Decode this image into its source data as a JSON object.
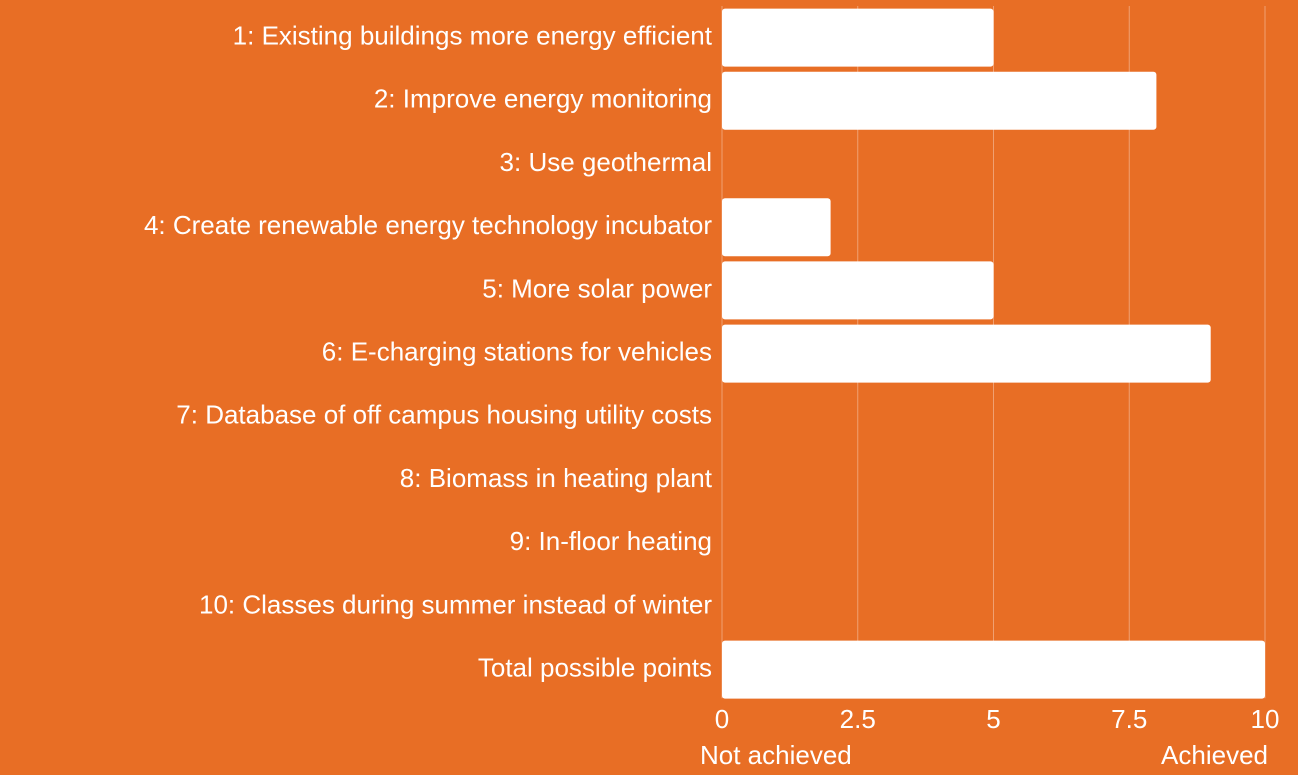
{
  "chart_data": {
    "type": "barh",
    "categories": [
      "1: Existing buildings more energy efficient",
      "2: Improve energy monitoring",
      "3: Use geothermal",
      "4: Create renewable energy technology incubator",
      "5: More solar power",
      "6: E-charging stations for vehicles",
      "7: Database of off campus housing utility costs",
      "8: Biomass in heating plant",
      "9: In-floor heating",
      "10: Classes during summer instead of winter",
      "Total possible points"
    ],
    "values": [
      5,
      8,
      0,
      2,
      5,
      9,
      0,
      0,
      0,
      0,
      10
    ],
    "color": "#ffffff",
    "xlim": [
      0,
      10
    ],
    "xticks": [
      0,
      2.5,
      5,
      7.5,
      10
    ],
    "grid": true,
    "annotations": [
      "Not achieved",
      "Achieved"
    ]
  }
}
